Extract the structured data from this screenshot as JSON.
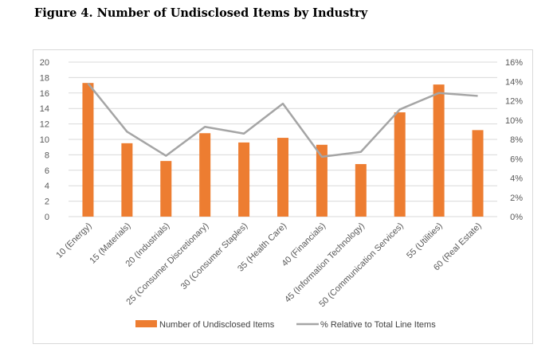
{
  "title": "Figure 4. Number of Undisclosed Items by Industry",
  "colors": {
    "bar": "#ED7D31",
    "line": "#A5A5A5",
    "grid": "#D9D9D9",
    "axis_text": "#595959"
  },
  "chart_data": {
    "type": "bar",
    "title": "Figure 4. Number of Undisclosed Items by Industry",
    "categories": [
      "10 (Energy)",
      "15 (Materials)",
      "20 (Industrials)",
      "25 (Consumer Discretionary)",
      "30 (Consumer Staples)",
      "35 (Health Care)",
      "40 (Financials)",
      "45 (Information Technology)",
      "50 (Communication Services)",
      "55 (Utilities)",
      "60 (Real Estate)"
    ],
    "series": [
      {
        "name": "Number of Undisclosed Items",
        "type": "bar",
        "axis": "left",
        "values": [
          17.3,
          9.5,
          7.2,
          10.8,
          9.6,
          10.2,
          9.3,
          6.8,
          13.5,
          17.1,
          11.2
        ]
      },
      {
        "name": "% Relative to Total Line Items",
        "type": "line",
        "axis": "right",
        "values": [
          13.8,
          8.8,
          6.3,
          9.3,
          8.6,
          11.7,
          6.2,
          6.7,
          11.1,
          12.8,
          12.5
        ]
      }
    ],
    "left_axis": {
      "ylim": [
        0,
        20
      ],
      "ticks": [
        "0",
        "2",
        "4",
        "6",
        "8",
        "10",
        "12",
        "14",
        "16",
        "18",
        "20"
      ]
    },
    "right_axis": {
      "ylim": [
        0,
        16
      ],
      "ticks": [
        "0%",
        "2%",
        "4%",
        "6%",
        "8%",
        "10%",
        "12%",
        "14%",
        "16%"
      ]
    },
    "xlabel": "",
    "ylabel": "",
    "grid": true,
    "legend_position": "bottom"
  }
}
